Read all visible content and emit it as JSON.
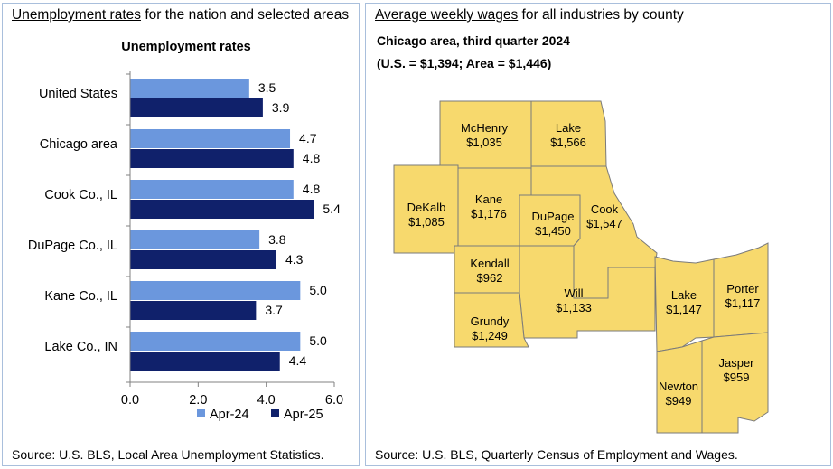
{
  "left_panel": {
    "title_underlined": "Unemployment rates",
    "title_rest": " for the nation and selected areas",
    "source": "Source: U.S. BLS, Local Area Unemployment Statistics."
  },
  "right_panel": {
    "title_underlined": "Average weekly wages",
    "title_rest": " for all industries by county",
    "subtitle_line1": "Chicago area, third quarter 2024",
    "subtitle_line2": "(U.S. = $1,394; Area = $1,446)",
    "source": "Source: U.S. BLS, Quarterly Census of Employment and Wages.",
    "counties": [
      {
        "name": "McHenry",
        "wage": "$1,035"
      },
      {
        "name": "Lake",
        "wage": "$1,566"
      },
      {
        "name": "DeKalb",
        "wage": "$1,085"
      },
      {
        "name": "Kane",
        "wage": "$1,176"
      },
      {
        "name": "DuPage",
        "wage": "$1,450"
      },
      {
        "name": "Cook",
        "wage": "$1,547"
      },
      {
        "name": "Kendall",
        "wage": "$962"
      },
      {
        "name": "Will",
        "wage": "$1,133"
      },
      {
        "name": "Grundy",
        "wage": "$1,249"
      },
      {
        "name": "Lake",
        "wage": "$1,147"
      },
      {
        "name": "Porter",
        "wage": "$1,117"
      },
      {
        "name": "Newton",
        "wage": "$949"
      },
      {
        "name": "Jasper",
        "wage": "$959"
      }
    ],
    "map_fill": "#f7d96d",
    "map_stroke": "#7a7a7a"
  },
  "chart_data": {
    "type": "bar",
    "orientation": "horizontal",
    "title": "Unemployment rates",
    "categories": [
      "United States",
      "Chicago area",
      "Cook Co., IL",
      "DuPage Co., IL",
      "Kane Co., IL",
      "Lake Co., IN"
    ],
    "series": [
      {
        "name": "Apr-24",
        "values": [
          3.5,
          4.7,
          4.8,
          3.8,
          5.0,
          5.0
        ],
        "color": "#6b97dd",
        "labels": [
          "3.5",
          "4.7",
          "4.8",
          "3.8",
          "5.0",
          "5.0"
        ]
      },
      {
        "name": "Apr-25",
        "values": [
          3.9,
          4.8,
          5.4,
          4.3,
          3.7,
          4.4
        ],
        "color": "#10216b",
        "labels": [
          "3.9",
          "4.8",
          "5.4",
          "4.3",
          "3.7",
          "4.4"
        ]
      }
    ],
    "xlim": [
      0,
      6
    ],
    "xticks": [
      "0.0",
      "2.0",
      "4.0",
      "6.0"
    ],
    "xtick_values": [
      0,
      2,
      4,
      6
    ],
    "legend_position": "bottom",
    "grid": false
  }
}
